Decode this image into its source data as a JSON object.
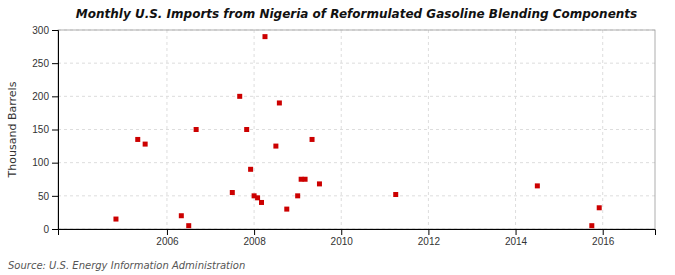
{
  "chart_data": {
    "type": "scatter",
    "title": "Monthly U.S. Imports from Nigeria of Reformulated Gasoline Blending Components",
    "ylabel": "Thousand Barrels",
    "source": "Source: U.S. Energy Information Administration",
    "color": "#cc0000",
    "marker": "square",
    "grid": true,
    "xlim": [
      2003.5,
      2017.2
    ],
    "xticks": [
      2006,
      2008,
      2010,
      2012,
      2014,
      2016
    ],
    "ylim": [
      0,
      300
    ],
    "yticks": [
      0,
      50,
      100,
      150,
      200,
      250,
      300
    ],
    "x": [
      2004.83,
      2005.33,
      2005.5,
      2006.33,
      2006.5,
      2006.67,
      2007.5,
      2007.67,
      2007.83,
      2007.92,
      2008.0,
      2008.08,
      2008.17,
      2008.25,
      2008.5,
      2008.58,
      2008.75,
      2009.0,
      2009.08,
      2009.17,
      2009.33,
      2009.5,
      2011.25,
      2014.5,
      2015.75,
      2015.92
    ],
    "values": [
      15,
      135,
      128,
      20,
      5,
      150,
      55,
      200,
      150,
      90,
      50,
      47,
      40,
      290,
      125,
      190,
      30,
      50,
      75,
      75,
      135,
      68,
      52,
      65,
      5,
      32
    ]
  }
}
